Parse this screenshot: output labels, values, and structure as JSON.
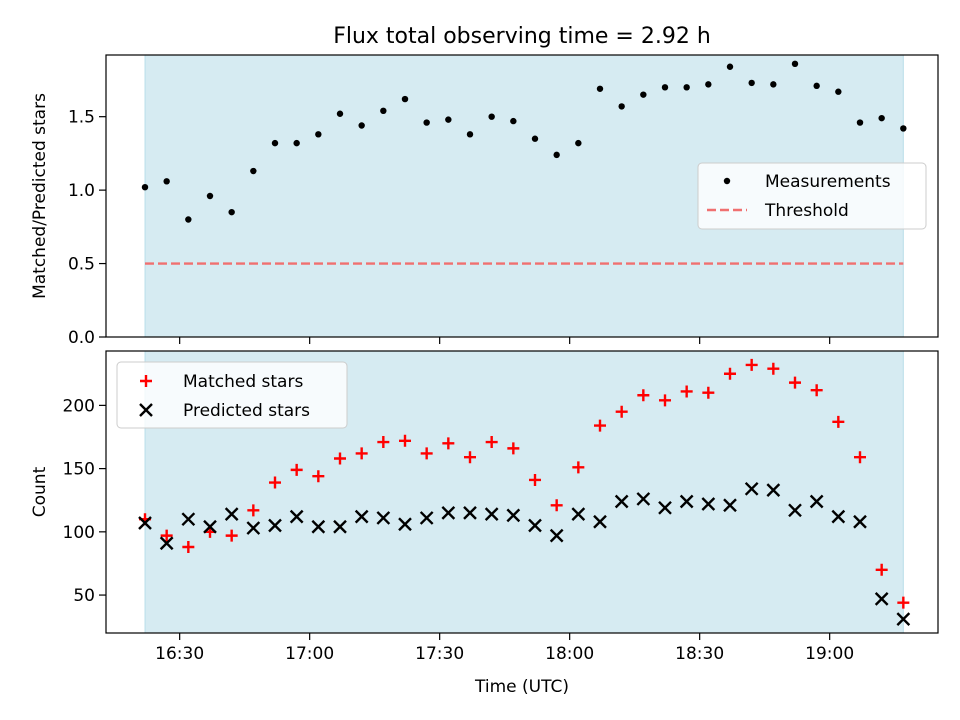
{
  "chart_data": [
    {
      "type": "scatter",
      "title": "Flux total observing time = 2.92 h",
      "ylabel": "Matched/Predicted stars",
      "xlabel": "",
      "ylim": [
        0,
        1.92
      ],
      "yticks": [
        0.0,
        0.5,
        1.0,
        1.5
      ],
      "ytick_labels": [
        "0.0",
        "0.5",
        "1.0",
        "1.5"
      ],
      "xlim": [
        "16:13",
        "19:25"
      ],
      "observing_window": [
        "16:22",
        "19:17"
      ],
      "legend_position": "center-right",
      "threshold": {
        "name": "Threshold",
        "value": 0.5,
        "color": "#f07070"
      },
      "series": [
        {
          "name": "Measurements",
          "color": "#000000",
          "x": [
            "16:22",
            "16:27",
            "16:32",
            "16:37",
            "16:42",
            "16:47",
            "16:52",
            "16:57",
            "17:02",
            "17:07",
            "17:12",
            "17:17",
            "17:22",
            "17:27",
            "17:32",
            "17:37",
            "17:42",
            "17:47",
            "17:52",
            "17:57",
            "18:02",
            "18:07",
            "18:12",
            "18:17",
            "18:22",
            "18:27",
            "18:32",
            "18:37",
            "18:42",
            "18:47",
            "18:52",
            "18:57",
            "19:02",
            "19:07",
            "19:12",
            "19:17"
          ],
          "y": [
            1.02,
            1.06,
            0.8,
            0.96,
            0.85,
            1.13,
            1.32,
            1.32,
            1.38,
            1.52,
            1.44,
            1.54,
            1.62,
            1.46,
            1.48,
            1.38,
            1.5,
            1.47,
            1.35,
            1.24,
            1.32,
            1.69,
            1.57,
            1.65,
            1.7,
            1.7,
            1.72,
            1.84,
            1.73,
            1.72,
            1.86,
            1.71,
            1.67,
            1.46,
            1.49,
            1.42
          ]
        }
      ]
    },
    {
      "type": "scatter",
      "title": "",
      "ylabel": "Count",
      "xlabel": "Time (UTC)",
      "ylim": [
        20,
        243
      ],
      "yticks": [
        50,
        100,
        150,
        200
      ],
      "ytick_labels": [
        "50",
        "100",
        "150",
        "200"
      ],
      "xlim": [
        "16:13",
        "19:25"
      ],
      "xticks": [
        "16:30",
        "17:00",
        "17:30",
        "18:00",
        "18:30",
        "19:00"
      ],
      "legend_position": "top-left",
      "series": [
        {
          "name": "Matched stars",
          "color": "#ff0000",
          "marker": "+",
          "x": [
            "16:22",
            "16:27",
            "16:32",
            "16:37",
            "16:42",
            "16:47",
            "16:52",
            "16:57",
            "17:02",
            "17:07",
            "17:12",
            "17:17",
            "17:22",
            "17:27",
            "17:32",
            "17:37",
            "17:42",
            "17:47",
            "17:52",
            "17:57",
            "18:02",
            "18:07",
            "18:12",
            "18:17",
            "18:22",
            "18:27",
            "18:32",
            "18:37",
            "18:42",
            "18:47",
            "18:52",
            "18:57",
            "19:02",
            "19:07",
            "19:12",
            "19:17"
          ],
          "y": [
            110,
            97,
            88,
            100,
            97,
            117,
            139,
            149,
            144,
            158,
            162,
            171,
            172,
            162,
            170,
            159,
            171,
            166,
            141,
            121,
            151,
            184,
            195,
            208,
            204,
            211,
            210,
            225,
            232,
            229,
            218,
            212,
            187,
            159,
            70,
            44
          ]
        },
        {
          "name": "Predicted stars",
          "color": "#000000",
          "marker": "x",
          "x": [
            "16:22",
            "16:27",
            "16:32",
            "16:37",
            "16:42",
            "16:47",
            "16:52",
            "16:57",
            "17:02",
            "17:07",
            "17:12",
            "17:17",
            "17:22",
            "17:27",
            "17:32",
            "17:37",
            "17:42",
            "17:47",
            "17:52",
            "17:57",
            "18:02",
            "18:07",
            "18:12",
            "18:17",
            "18:22",
            "18:27",
            "18:32",
            "18:37",
            "18:42",
            "18:47",
            "18:52",
            "18:57",
            "19:02",
            "19:07",
            "19:12",
            "19:17"
          ],
          "y": [
            107,
            91,
            110,
            104,
            114,
            103,
            105,
            112,
            104,
            104,
            112,
            111,
            106,
            111,
            115,
            115,
            114,
            113,
            105,
            97,
            114,
            108,
            124,
            126,
            119,
            124,
            122,
            121,
            134,
            133,
            117,
            124,
            112,
            108,
            47,
            31
          ]
        }
      ]
    }
  ]
}
